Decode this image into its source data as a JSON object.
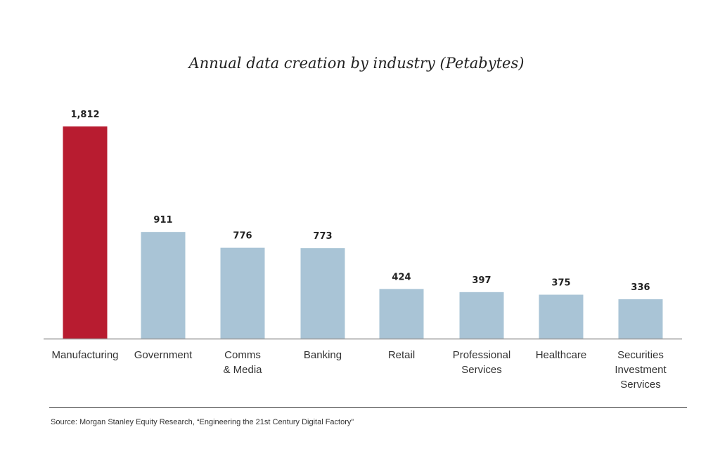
{
  "chart_data": {
    "type": "bar",
    "title": "Annual data creation by industry (Petabytes)",
    "categories": [
      "Manufacturing",
      "Government",
      "Comms & Media",
      "Banking",
      "Retail",
      "Professional Services",
      "Healthcare",
      "Securities Investment Services"
    ],
    "category_lines": [
      [
        "Manufacturing"
      ],
      [
        "Government"
      ],
      [
        "Comms",
        "& Media"
      ],
      [
        "Banking"
      ],
      [
        "Retail"
      ],
      [
        "Professional",
        "Services"
      ],
      [
        "Healthcare"
      ],
      [
        "Securities",
        "Investment",
        "Services"
      ]
    ],
    "values": [
      1812,
      911,
      776,
      773,
      424,
      397,
      375,
      336
    ],
    "value_labels": [
      "1,812",
      "911",
      "776",
      "773",
      "424",
      "397",
      "375",
      "336"
    ],
    "bar_colors": [
      "#b81c30",
      "#a9c4d6",
      "#a9c4d6",
      "#a9c4d6",
      "#a9c4d6",
      "#a9c4d6",
      "#a9c4d6",
      "#a9c4d6"
    ],
    "ylim": [
      0,
      1812
    ],
    "xlabel": "",
    "ylabel": "",
    "grid": false,
    "legend": "none"
  },
  "source": "Source: Morgan Stanley Equity Research, “Engineering the 21st Century Digital Factory”"
}
